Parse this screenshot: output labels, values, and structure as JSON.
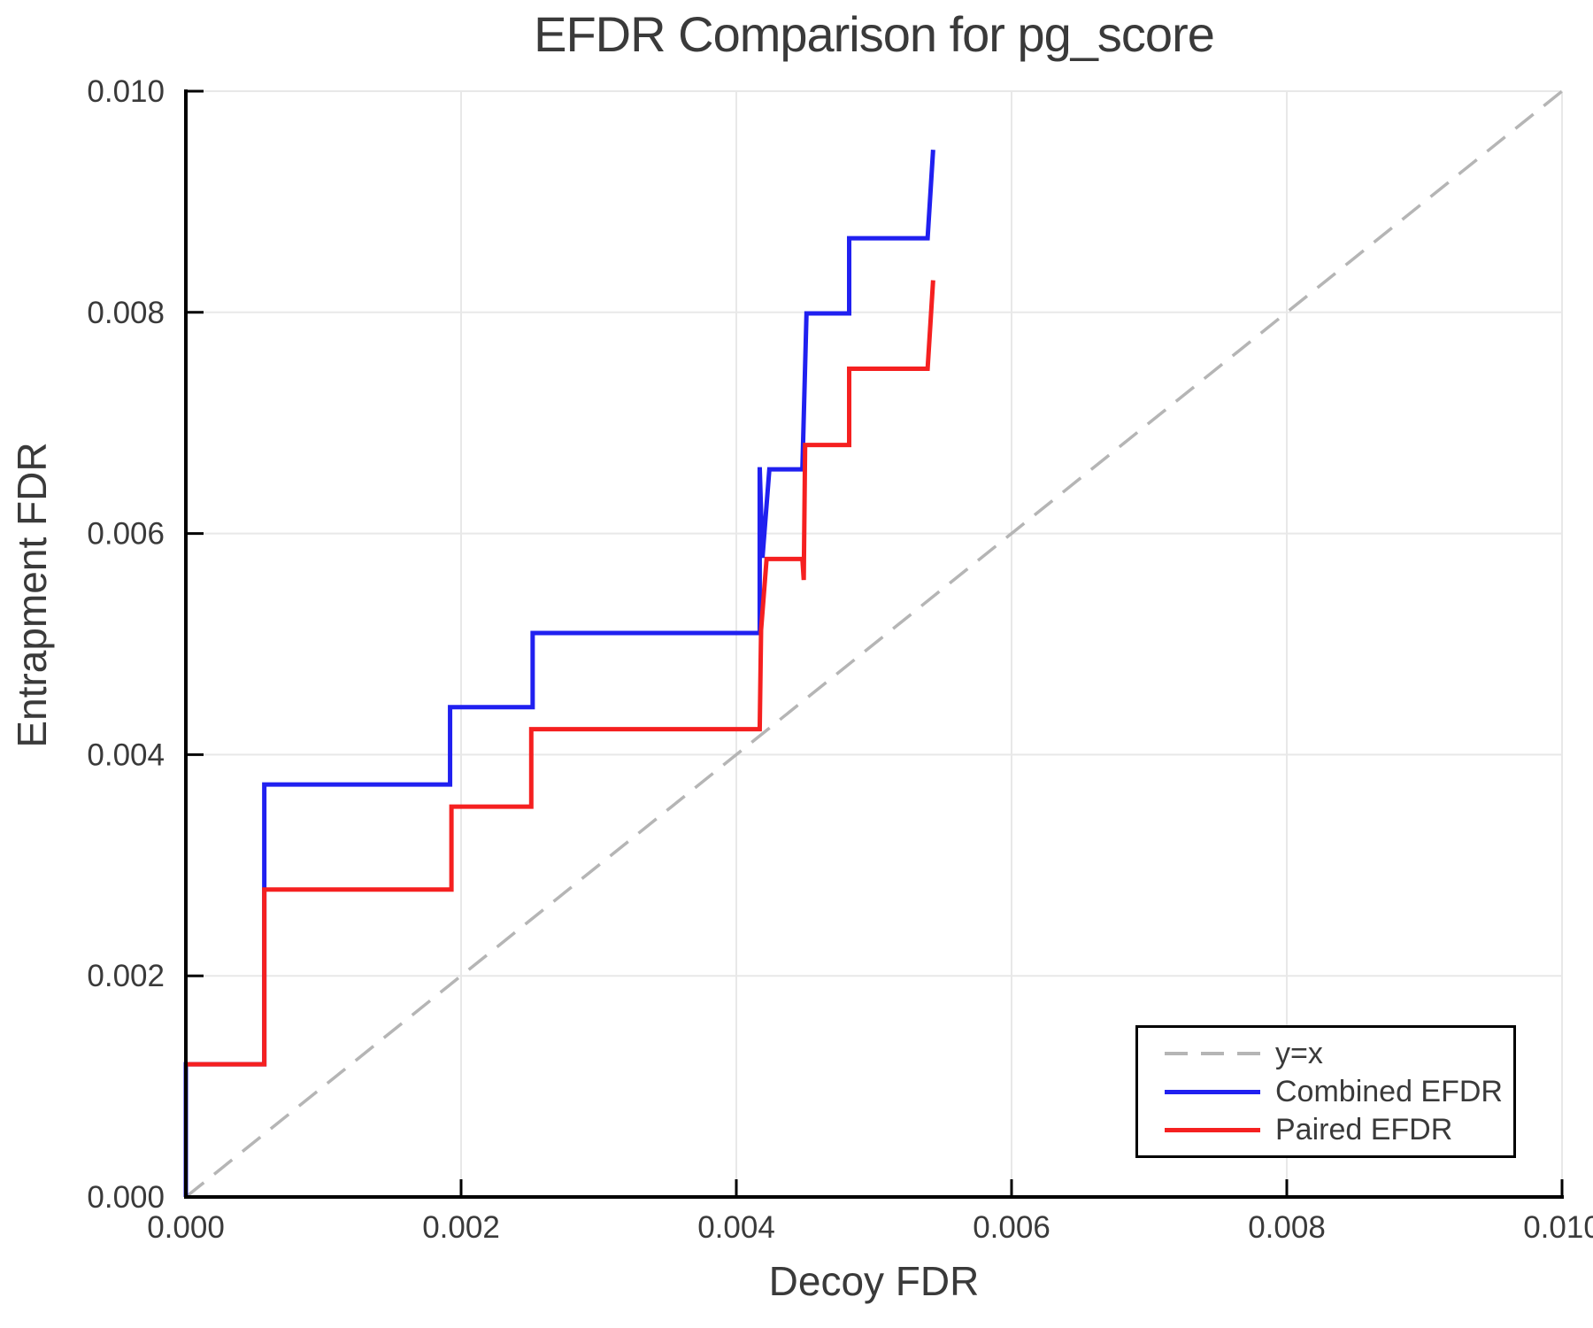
{
  "chart_data": {
    "type": "line",
    "title": "EFDR Comparison for pg_score",
    "xlabel": "Decoy FDR",
    "ylabel": "Entrapment FDR",
    "xlim": [
      0.0,
      0.01
    ],
    "ylim": [
      0.0,
      0.01
    ],
    "grid": true,
    "grid_color": "#e8e8e8",
    "axis_color": "#000000",
    "text_color": "#3a3a3a",
    "legend_position": "lower right",
    "x_ticks": {
      "values": [
        0.0,
        0.002,
        0.004,
        0.006,
        0.008,
        0.01
      ],
      "labels": [
        "0.000",
        "0.002",
        "0.004",
        "0.006",
        "0.008",
        "0.010"
      ]
    },
    "y_ticks": {
      "values": [
        0.0,
        0.002,
        0.004,
        0.006,
        0.008,
        0.01
      ],
      "labels": [
        "0.000",
        "0.002",
        "0.004",
        "0.006",
        "0.008",
        "0.010"
      ]
    },
    "reference_line": {
      "label": "y=x",
      "style": "dashed",
      "color": "#b5b5b5",
      "points": [
        [
          0.0,
          0.0
        ],
        [
          0.01,
          0.01
        ]
      ]
    },
    "series": [
      {
        "name": "Combined EFDR",
        "color": "#2020f0",
        "style": "solid",
        "points": [
          [
            0.0,
            0.0
          ],
          [
            0.0,
            0.0012
          ],
          [
            0.00057,
            0.0012
          ],
          [
            0.00057,
            0.00373
          ],
          [
            0.00192,
            0.00373
          ],
          [
            0.00192,
            0.00443
          ],
          [
            0.00252,
            0.00443
          ],
          [
            0.00252,
            0.0051
          ],
          [
            0.00417,
            0.0051
          ],
          [
            0.00417,
            0.0066
          ],
          [
            0.00419,
            0.00578
          ],
          [
            0.00424,
            0.00658
          ],
          [
            0.00448,
            0.00658
          ],
          [
            0.00451,
            0.00799
          ],
          [
            0.00482,
            0.00799
          ],
          [
            0.00482,
            0.00867
          ],
          [
            0.00539,
            0.00867
          ],
          [
            0.00543,
            0.00947
          ]
        ]
      },
      {
        "name": "Paired EFDR",
        "color": "#f52020",
        "style": "solid",
        "points": [
          [
            0.0,
            0.0012
          ],
          [
            0.00057,
            0.0012
          ],
          [
            0.00057,
            0.00278
          ],
          [
            0.00193,
            0.00278
          ],
          [
            0.00193,
            0.00353
          ],
          [
            0.00251,
            0.00353
          ],
          [
            0.00251,
            0.00423
          ],
          [
            0.00417,
            0.00423
          ],
          [
            0.00418,
            0.00513
          ],
          [
            0.00422,
            0.00577
          ],
          [
            0.00448,
            0.00577
          ],
          [
            0.00449,
            0.00558
          ],
          [
            0.0045,
            0.0068
          ],
          [
            0.00482,
            0.0068
          ],
          [
            0.00482,
            0.00749
          ],
          [
            0.00539,
            0.00749
          ],
          [
            0.00543,
            0.00829
          ]
        ]
      }
    ]
  }
}
